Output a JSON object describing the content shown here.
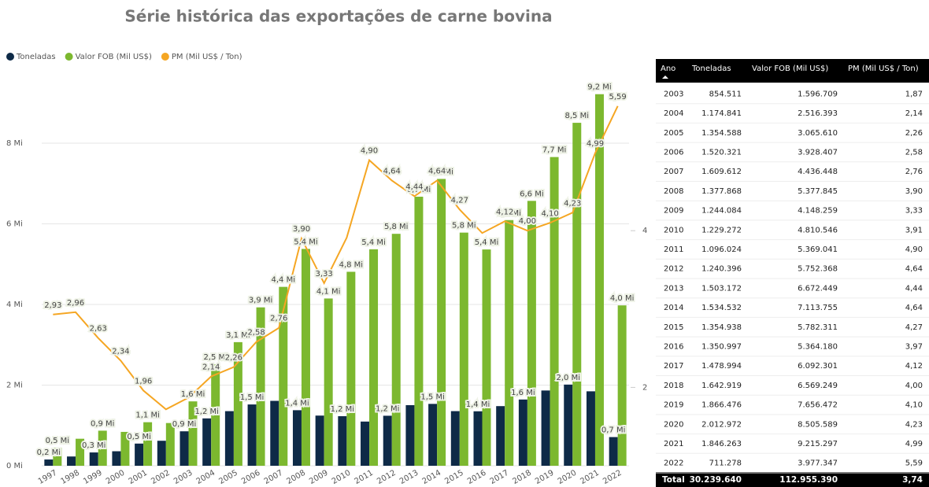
{
  "chart_data": {
    "type": "combo",
    "title": "Série histórica das exportações de carne bovina",
    "categories": [
      "1997",
      "1998",
      "1999",
      "2000",
      "2001",
      "2002",
      "2003",
      "2004",
      "2005",
      "2006",
      "2007",
      "2008",
      "2009",
      "2010",
      "2011",
      "2012",
      "2013",
      "2014",
      "2015",
      "2016",
      "2017",
      "2018",
      "2019",
      "2020",
      "2021",
      "2022"
    ],
    "series": [
      {
        "name": "Toneladas",
        "type": "bar",
        "color": "#0e2a47",
        "values": [
          155000,
          230000,
          330000,
          360000,
          550000,
          620000,
          854511,
          1174841,
          1354588,
          1520321,
          1609612,
          1377868,
          1244084,
          1229272,
          1096024,
          1240396,
          1503172,
          1534532,
          1354938,
          1350997,
          1478994,
          1642919,
          1866476,
          2012972,
          1846263,
          711278
        ],
        "value_labels": [
          "0,2 Mi",
          null,
          "0,3 Mi",
          null,
          "0,5 Mi",
          null,
          "0,9 Mi",
          "1,2 Mi",
          null,
          "1,5 Mi",
          null,
          "1,4 Mi",
          null,
          "1,2 Mi",
          null,
          "1,2 Mi",
          null,
          "1,5 Mi",
          null,
          "1,4 Mi",
          null,
          "1,6 Mi",
          null,
          "2,0 Mi",
          null,
          "0,7 Mi"
        ]
      },
      {
        "name": "Valor FOB (Mil US$)",
        "type": "bar",
        "color": "#7cb82f",
        "values": [
          450000,
          670000,
          870000,
          840000,
          1080000,
          1060000,
          1596709,
          2516393,
          3065610,
          3928407,
          4436448,
          5377845,
          4148259,
          4810546,
          5369041,
          5752368,
          6672449,
          7113755,
          5782311,
          5364180,
          6092301,
          6569249,
          7656472,
          8505589,
          9215297,
          3977347
        ],
        "value_labels": [
          "0,5 Mi",
          null,
          "0,9 Mi",
          null,
          "1,1 Mi",
          null,
          "1,6 Mi",
          "2,5 Mi",
          "3,1 Mi",
          "3,9 Mi",
          "4,4 Mi",
          "5,4 Mi",
          "4,1 Mi",
          "4,8 Mi",
          "5,4 Mi",
          "5,8 Mi",
          "6,7 Mi",
          "7,1 Mi",
          "5,8 Mi",
          "5,4 Mi",
          "6,1 Mi",
          "6,6 Mi",
          "7,7 Mi",
          "8,5 Mi",
          "9,2 Mi",
          "4,0 Mi"
        ]
      },
      {
        "name": "PM (Mil US$ / Ton)",
        "type": "line",
        "axis": "y2",
        "color": "#f5a623",
        "values": [
          2.93,
          2.96,
          2.63,
          2.34,
          1.96,
          1.72,
          1.87,
          2.14,
          2.26,
          2.58,
          2.76,
          3.9,
          3.33,
          3.91,
          4.9,
          4.64,
          4.44,
          4.64,
          4.27,
          3.97,
          4.12,
          4.0,
          4.1,
          4.23,
          4.99,
          5.59
        ],
        "value_labels": [
          "2,93",
          "2,96",
          "2,63",
          "2,34",
          "1,96",
          null,
          null,
          "2,14",
          "2,26",
          "2,58",
          "2,76",
          "3,90",
          "3,33",
          null,
          "4,90",
          "4,64",
          "4,44",
          "4,64",
          "4,27",
          null,
          "4,12",
          "4,00",
          "4,10",
          "4,23",
          "4,99",
          "5,59"
        ]
      }
    ],
    "ylim": [
      0,
      9600000
    ],
    "yticks": [
      {
        "value": 0,
        "label": "0 Mi"
      },
      {
        "value": 2000000,
        "label": "2 Mi"
      },
      {
        "value": 4000000,
        "label": "4 Mi"
      },
      {
        "value": 6000000,
        "label": "6 Mi"
      },
      {
        "value": 8000000,
        "label": "8 Mi"
      }
    ],
    "y2lim": [
      1,
      5.94
    ],
    "y2ticks": [
      2,
      4
    ],
    "grid": true,
    "legend": "top-left"
  },
  "table": {
    "columns": [
      "Ano",
      "Toneladas",
      "Valor FOB (Mil US$)",
      "PM (Mil US$ / Ton)"
    ],
    "rows": [
      [
        "2003",
        "854.511",
        "1.596.709",
        "1,87"
      ],
      [
        "2004",
        "1.174.841",
        "2.516.393",
        "2,14"
      ],
      [
        "2005",
        "1.354.588",
        "3.065.610",
        "2,26"
      ],
      [
        "2006",
        "1.520.321",
        "3.928.407",
        "2,58"
      ],
      [
        "2007",
        "1.609.612",
        "4.436.448",
        "2,76"
      ],
      [
        "2008",
        "1.377.868",
        "5.377.845",
        "3,90"
      ],
      [
        "2009",
        "1.244.084",
        "4.148.259",
        "3,33"
      ],
      [
        "2010",
        "1.229.272",
        "4.810.546",
        "3,91"
      ],
      [
        "2011",
        "1.096.024",
        "5.369.041",
        "4,90"
      ],
      [
        "2012",
        "1.240.396",
        "5.752.368",
        "4,64"
      ],
      [
        "2013",
        "1.503.172",
        "6.672.449",
        "4,44"
      ],
      [
        "2014",
        "1.534.532",
        "7.113.755",
        "4,64"
      ],
      [
        "2015",
        "1.354.938",
        "5.782.311",
        "4,27"
      ],
      [
        "2016",
        "1.350.997",
        "5.364.180",
        "3,97"
      ],
      [
        "2017",
        "1.478.994",
        "6.092.301",
        "4,12"
      ],
      [
        "2018",
        "1.642.919",
        "6.569.249",
        "4,00"
      ],
      [
        "2019",
        "1.866.476",
        "7.656.472",
        "4,10"
      ],
      [
        "2020",
        "2.012.972",
        "8.505.589",
        "4,23"
      ],
      [
        "2021",
        "1.846.263",
        "9.215.297",
        "4,99"
      ],
      [
        "2022",
        "711.278",
        "3.977.347",
        "5,59"
      ]
    ],
    "total": [
      "Total",
      "30.239.640",
      "112.955.390",
      "3,74"
    ]
  }
}
